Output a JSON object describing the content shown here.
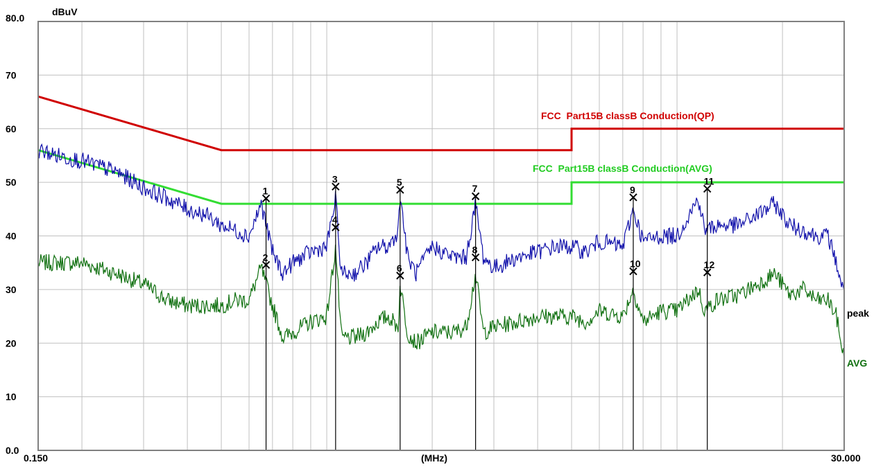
{
  "chart_data": {
    "type": "line",
    "y_unit": "dBuV",
    "x_unit": "(MHz)",
    "x_scale": "log",
    "xlim": [
      0.15,
      30.0
    ],
    "ylim": [
      0,
      80
    ],
    "x_tick_labels": [
      "0.150",
      "30.000"
    ],
    "y_tick_labels": [
      "80.0",
      "70",
      "60",
      "50",
      "40",
      "30",
      "20",
      "10",
      "0.0"
    ],
    "y_ticks": [
      80,
      70,
      60,
      50,
      40,
      30,
      20,
      10,
      0
    ],
    "grid": true,
    "colors": {
      "frame": "#808080",
      "grid": "#c0c0c0",
      "qp_limit": "#d00000",
      "avg_limit": "#33dd33",
      "peak": "#1010aa",
      "avg": "#107010",
      "marker": "#000000"
    },
    "limits": [
      {
        "name": "FCC  Part15B classB Conduction(QP)",
        "points": [
          [
            0.15,
            66.0
          ],
          [
            0.5,
            56.0
          ],
          [
            5.0,
            56.0
          ],
          [
            5.0,
            60.0
          ],
          [
            30.0,
            60.0
          ]
        ]
      },
      {
        "name": "FCC  Part15B classB Conduction(AVG)",
        "points": [
          [
            0.15,
            56.0
          ],
          [
            0.5,
            46.0
          ],
          [
            5.0,
            46.0
          ],
          [
            5.0,
            50.0
          ],
          [
            30.0,
            50.0
          ]
        ]
      }
    ],
    "series_labels": {
      "peak": "peak",
      "avg": "AVG"
    },
    "peak_trace": {
      "x": [
        0.15,
        0.17,
        0.2,
        0.25,
        0.3,
        0.35,
        0.4,
        0.45,
        0.5,
        0.55,
        0.6,
        0.65,
        0.7,
        0.75,
        0.8,
        0.9,
        1.0,
        1.06,
        1.1,
        1.2,
        1.3,
        1.4,
        1.5,
        1.6,
        1.62,
        1.7,
        1.8,
        2.0,
        2.3,
        2.5,
        2.66,
        2.8,
        3.0,
        3.5,
        4.0,
        4.5,
        5.0,
        5.5,
        6.0,
        7.0,
        7.5,
        8.0,
        9.0,
        10.0,
        11.5,
        12.0,
        13.0,
        15.0,
        17.0,
        19.0,
        21.0,
        23.0,
        25.0,
        27.0,
        28.5,
        30.0
      ],
      "y": [
        56,
        55,
        54,
        52,
        49,
        47,
        45,
        44,
        42,
        41,
        40,
        46,
        37,
        33,
        35,
        37,
        38,
        47,
        33,
        33,
        35,
        38,
        38,
        41,
        48,
        36,
        33,
        38,
        36,
        36,
        46,
        36,
        34,
        36,
        37,
        38,
        38,
        37,
        39,
        38,
        45,
        39,
        40,
        40,
        47,
        41,
        42,
        42,
        44,
        46,
        42,
        41,
        40,
        40,
        35,
        29
      ]
    },
    "avg_trace": {
      "x": [
        0.15,
        0.17,
        0.2,
        0.25,
        0.3,
        0.35,
        0.4,
        0.45,
        0.5,
        0.55,
        0.6,
        0.65,
        0.7,
        0.75,
        0.8,
        0.9,
        1.0,
        1.06,
        1.1,
        1.2,
        1.3,
        1.4,
        1.5,
        1.6,
        1.62,
        1.7,
        1.8,
        2.0,
        2.3,
        2.5,
        2.66,
        2.8,
        3.0,
        3.5,
        4.0,
        4.5,
        5.0,
        5.5,
        6.0,
        7.0,
        7.5,
        8.0,
        9.0,
        10.0,
        11.5,
        12.0,
        13.0,
        15.0,
        17.0,
        19.0,
        21.0,
        23.0,
        25.0,
        27.0,
        28.5,
        30.0
      ],
      "y": [
        35,
        35,
        35,
        33,
        31,
        28,
        27,
        27,
        27,
        28,
        28,
        34,
        27,
        21,
        22,
        24,
        25,
        38,
        21,
        21,
        22,
        24,
        25,
        23,
        31,
        22,
        20,
        22,
        22,
        23,
        33,
        22,
        23,
        24,
        25,
        25,
        25,
        24,
        26,
        25,
        30,
        24,
        26,
        26,
        30,
        26,
        28,
        29,
        31,
        33,
        29,
        30,
        28,
        28,
        25,
        17
      ]
    },
    "markers": [
      {
        "label": "1",
        "x": 0.671,
        "y": 47.0
      },
      {
        "label": "2",
        "x": 0.671,
        "y": 34.6
      },
      {
        "label": "3",
        "x": 1.06,
        "y": 49.2
      },
      {
        "label": "4",
        "x": 1.06,
        "y": 41.6
      },
      {
        "label": "5",
        "x": 1.62,
        "y": 48.6
      },
      {
        "label": "6",
        "x": 1.62,
        "y": 32.6
      },
      {
        "label": "7",
        "x": 2.66,
        "y": 47.4
      },
      {
        "label": "8",
        "x": 2.66,
        "y": 36.0
      },
      {
        "label": "9",
        "x": 7.5,
        "y": 47.2
      },
      {
        "label": "10",
        "x": 7.5,
        "y": 33.4
      },
      {
        "label": "11",
        "x": 12.2,
        "y": 48.8
      },
      {
        "label": "12",
        "x": 12.2,
        "y": 33.2
      }
    ]
  }
}
